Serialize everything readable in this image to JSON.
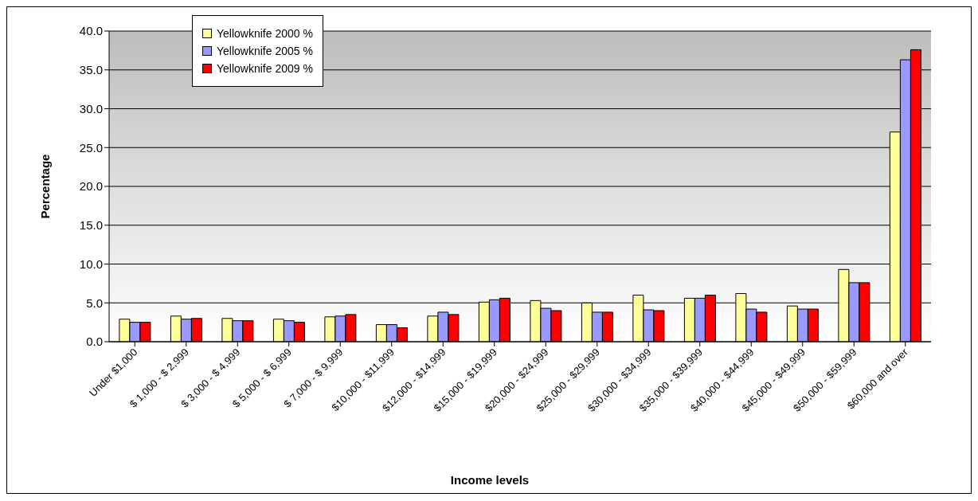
{
  "chart_data": {
    "type": "bar",
    "xlabel": "Income levels",
    "ylabel": "Percentage",
    "categories": [
      "Under $1,000",
      "$ 1,000 - $  2,999",
      "$ 3,000 - $  4,999",
      "$ 5,000 - $  6,999",
      "$ 7,000 - $  9,999",
      "$10,000 - $11,999",
      "$12,000 - $14,999",
      "$15,000 - $19,999",
      "$20,000 - $24,999",
      "$25,000 - $29,999",
      "$30,000 - $34,999",
      "$35,000 - $39,999",
      "$40,000 - $44,999",
      "$45,000 - $49,999",
      "$50,000 - $59,999",
      "$60,000 and over"
    ],
    "series": [
      {
        "name": "Yellowknife 2000 %",
        "color": "#ffff99",
        "values": [
          2.9,
          3.3,
          3.0,
          2.9,
          3.2,
          2.2,
          3.3,
          5.1,
          5.3,
          5.0,
          6.0,
          5.6,
          6.2,
          4.6,
          9.3,
          27.0
        ]
      },
      {
        "name": "Yellowknife 2005 %",
        "color": "#9999ff",
        "values": [
          2.5,
          2.9,
          2.7,
          2.7,
          3.3,
          2.2,
          3.8,
          5.4,
          4.3,
          3.8,
          4.1,
          5.6,
          4.2,
          4.2,
          7.6,
          36.3
        ]
      },
      {
        "name": "Yellowknife 2009 %",
        "color": "#ff0000",
        "values": [
          2.5,
          3.0,
          2.7,
          2.5,
          3.5,
          1.8,
          3.5,
          5.6,
          4.0,
          3.8,
          4.0,
          6.0,
          3.8,
          4.2,
          7.6,
          37.6
        ]
      }
    ],
    "ylim": [
      0,
      40
    ],
    "yticks": [
      {
        "value": 0,
        "label": "0.0"
      },
      {
        "value": 5,
        "label": "5.0"
      },
      {
        "value": 10,
        "label": "10.0"
      },
      {
        "value": 15,
        "label": "15.0"
      },
      {
        "value": 20,
        "label": "20.0"
      },
      {
        "value": 25,
        "label": "25.0"
      },
      {
        "value": 30,
        "label": "30.0"
      },
      {
        "value": 35,
        "label": "35.0"
      },
      {
        "value": 40,
        "label": "40.0"
      }
    ],
    "grid": "y",
    "legend": "top left"
  }
}
